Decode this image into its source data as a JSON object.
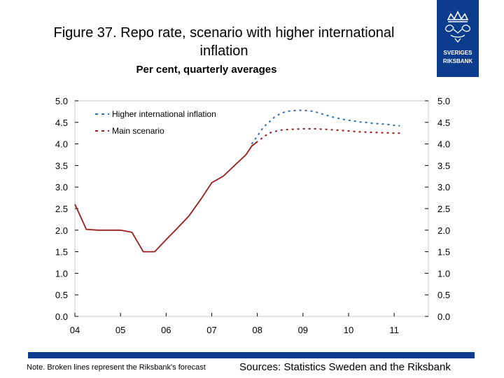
{
  "header": {
    "title": "Figure 37. Repo rate, scenario with higher international inflation",
    "subtitle": "Per cent, quarterly averages"
  },
  "logo": {
    "line1": "SVERIGES",
    "line2": "RIKSBANK",
    "color": "#0c3c8e"
  },
  "footer": {
    "note": "Note. Broken lines represent the Riksbank's forecast",
    "sources": "Sources: Statistics Sweden and the Riksbank"
  },
  "chart_data": {
    "type": "line",
    "title": "Figure 37. Repo rate, scenario with higher international inflation",
    "subtitle": "Per cent, quarterly averages",
    "xlabel": "",
    "ylabel": "",
    "x_tick_labels": [
      "04",
      "05",
      "06",
      "07",
      "08",
      "09",
      "10",
      "11"
    ],
    "x_range": [
      2004.0,
      2011.75
    ],
    "ylim": [
      0,
      5
    ],
    "y_ticks": [
      "0.0",
      "0.5",
      "1.0",
      "1.5",
      "2.0",
      "2.5",
      "3.0",
      "3.5",
      "4.0",
      "4.5",
      "5.0"
    ],
    "grid": false,
    "legend_position": "top-left",
    "forecast_start": 2008.0,
    "series": [
      {
        "name": "Higher international inflation",
        "color": "#2e6fb4",
        "style": "dashed",
        "x": [
          2007.875,
          2008.0,
          2008.125,
          2008.25,
          2008.375,
          2008.5,
          2008.625,
          2008.75,
          2008.875,
          2009.0,
          2009.125,
          2009.25,
          2009.375,
          2009.5,
          2009.625,
          2009.75,
          2009.875,
          2010.0,
          2010.125,
          2010.25,
          2010.375,
          2010.5,
          2010.625,
          2010.75,
          2010.875,
          2011.0,
          2011.125
        ],
        "values": [
          4.0,
          4.18,
          4.38,
          4.5,
          4.62,
          4.7,
          4.75,
          4.77,
          4.78,
          4.78,
          4.77,
          4.75,
          4.71,
          4.67,
          4.63,
          4.6,
          4.57,
          4.55,
          4.53,
          4.51,
          4.5,
          4.48,
          4.47,
          4.46,
          4.45,
          4.43,
          4.42
        ]
      },
      {
        "name": "Main scenario",
        "color": "#9b1c1c",
        "style": "solid-then-dashed",
        "x": [
          2004.0,
          2004.25,
          2004.5,
          2004.75,
          2005.0,
          2005.25,
          2005.5,
          2005.75,
          2006.0,
          2006.25,
          2006.5,
          2006.75,
          2007.0,
          2007.25,
          2007.5,
          2007.75,
          2007.875,
          2008.0,
          2008.25,
          2008.5,
          2008.75,
          2009.0,
          2009.25,
          2009.5,
          2009.75,
          2010.0,
          2010.25,
          2010.5,
          2010.75,
          2011.0,
          2011.125
        ],
        "values": [
          2.6,
          2.02,
          2.0,
          2.0,
          2.0,
          1.95,
          1.5,
          1.5,
          1.78,
          2.05,
          2.33,
          2.7,
          3.1,
          3.25,
          3.5,
          3.75,
          3.95,
          4.05,
          4.25,
          4.32,
          4.34,
          4.35,
          4.35,
          4.34,
          4.32,
          4.3,
          4.28,
          4.27,
          4.26,
          4.25,
          4.25
        ]
      }
    ]
  }
}
